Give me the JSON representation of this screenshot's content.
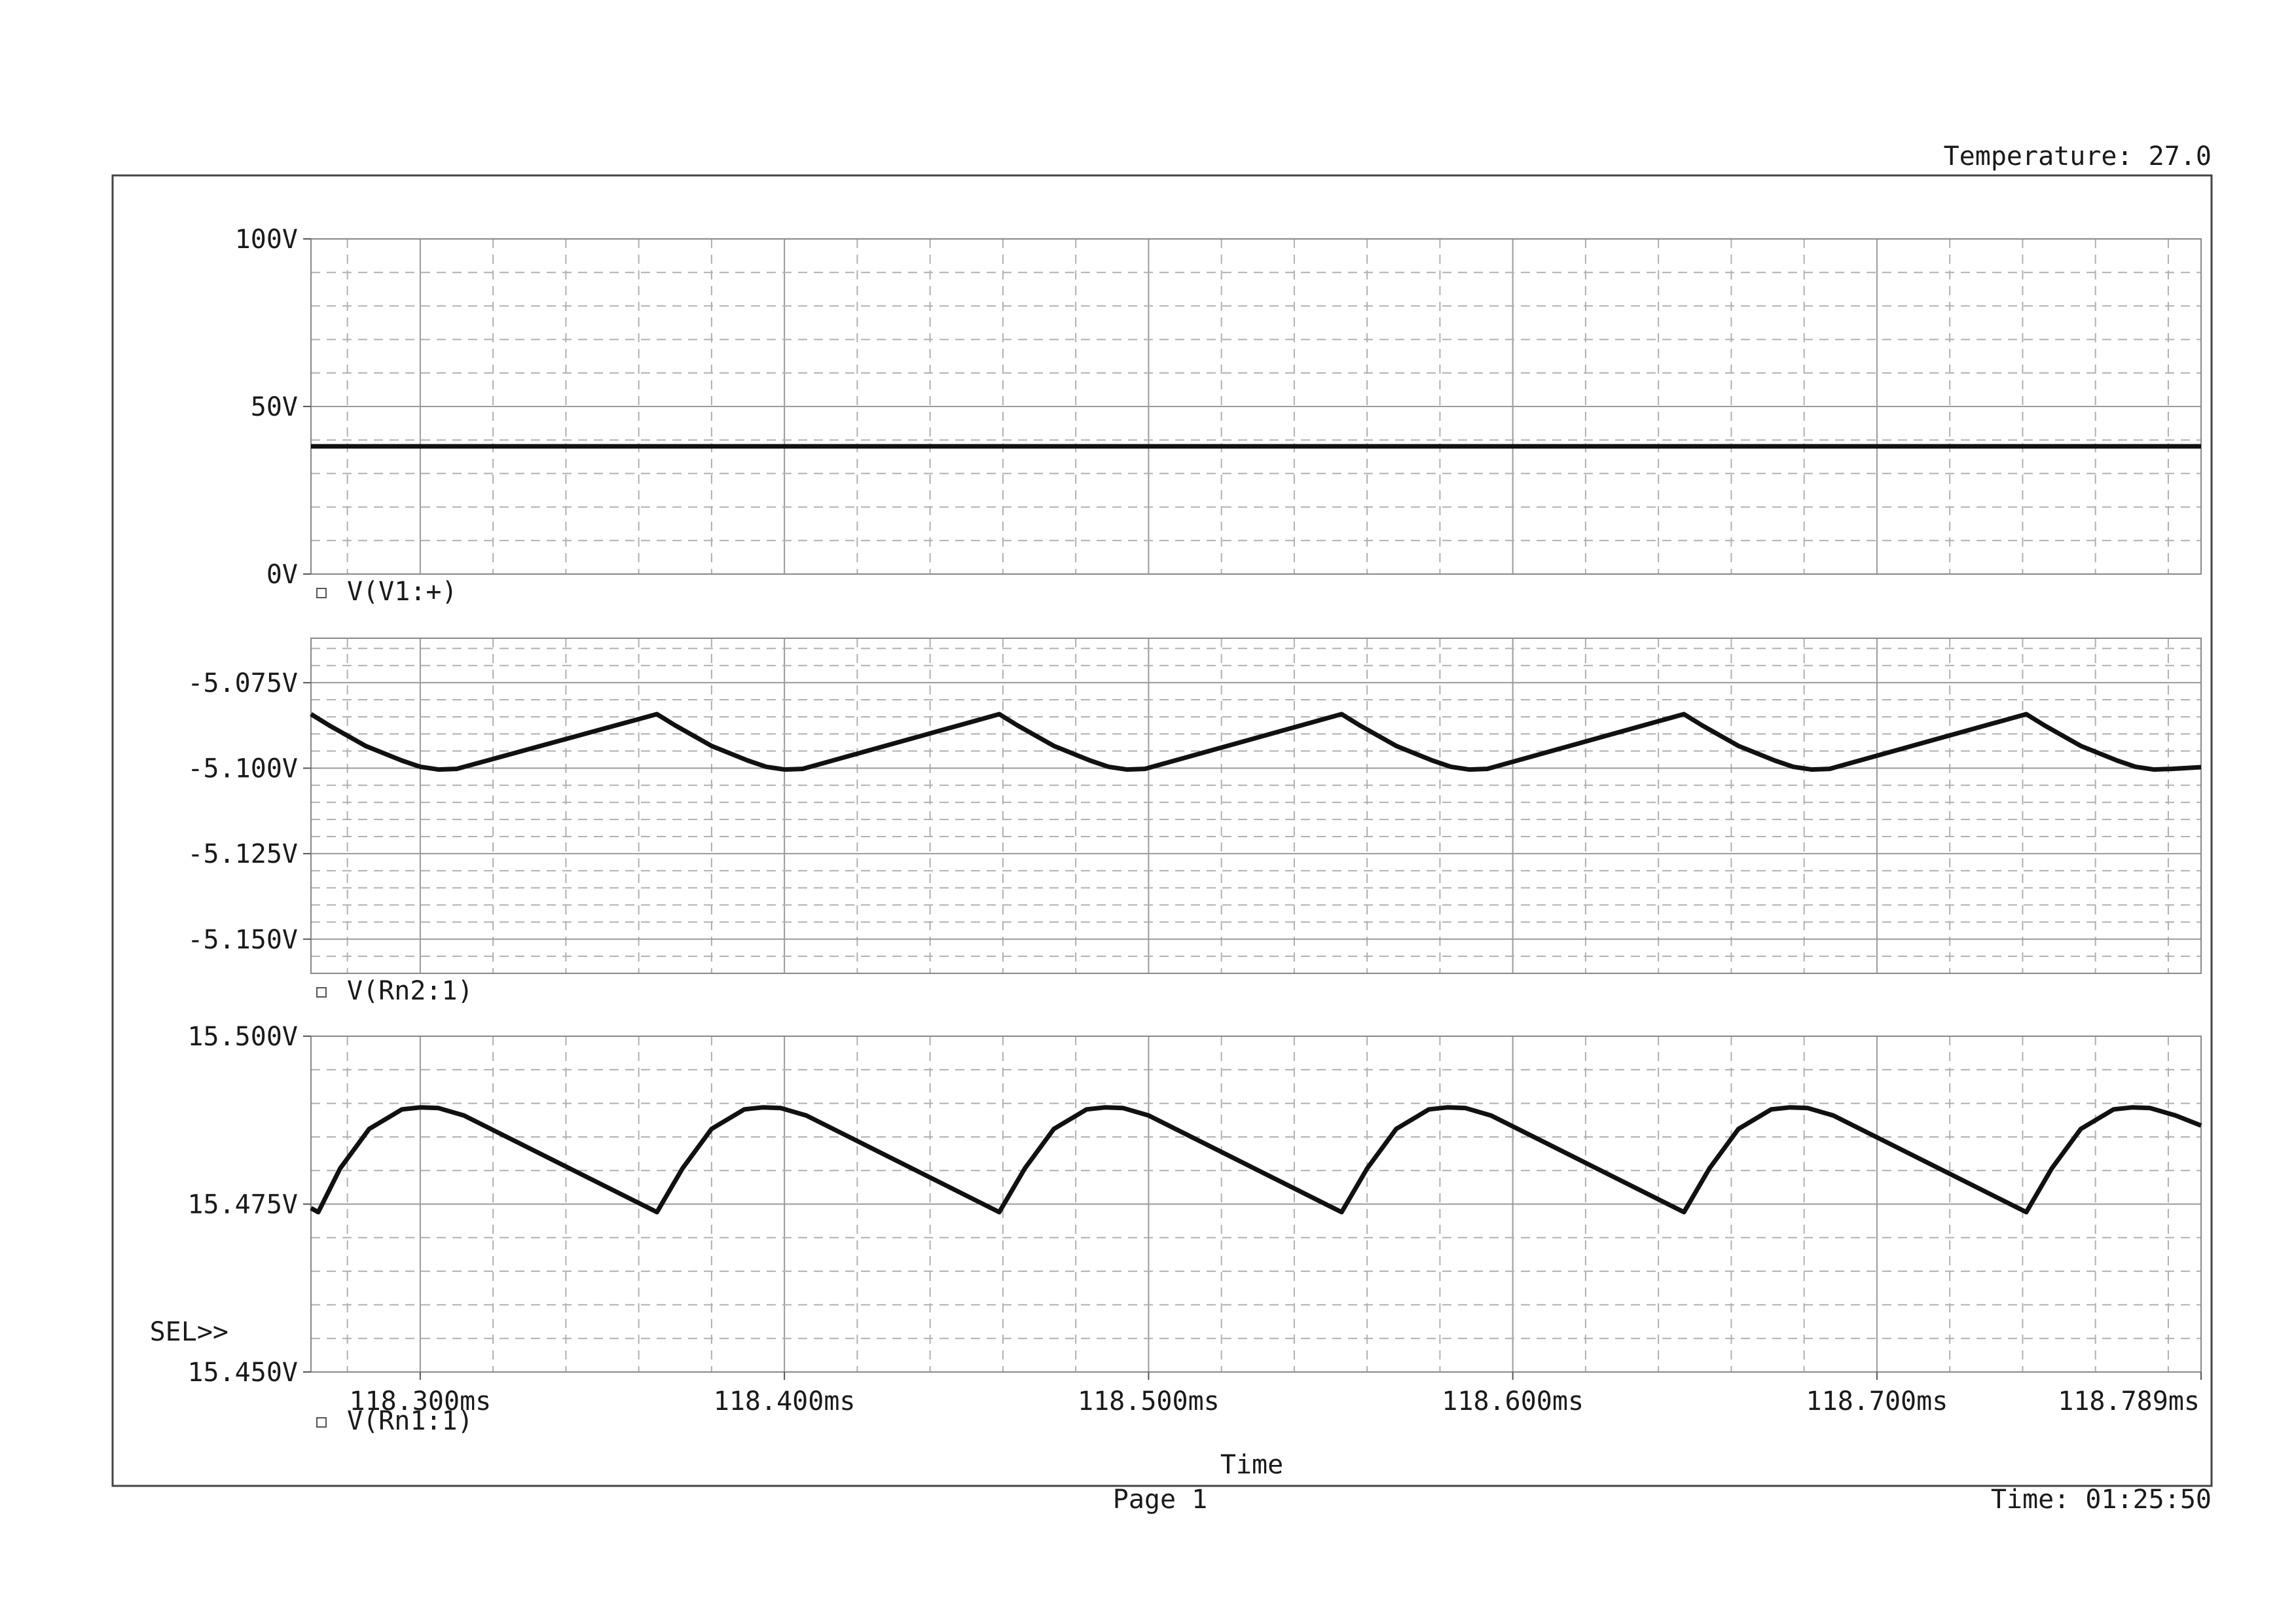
{
  "header": {
    "temperature": "Temperature: 27.0"
  },
  "footer": {
    "x_axis_title": "Time",
    "page": "Page 1",
    "time": "Time: 01:25:50"
  },
  "sel_marker": "SEL>>",
  "colors": {
    "trace": "#111111",
    "grid": "#9a9a9a",
    "frame": "#444444"
  },
  "chart_data": [
    {
      "type": "line",
      "series": [
        {
          "name": "V(V1:+)",
          "x": [
            118.27,
            118.789
          ],
          "y": [
            38.1,
            38.1
          ]
        }
      ],
      "ylim": [
        0,
        100
      ],
      "yticks": [
        0,
        50,
        100
      ],
      "ytick_labels": [
        "0V",
        "50V",
        "100V"
      ],
      "xlim": [
        118.27,
        118.789
      ],
      "grid": true
    },
    {
      "type": "line",
      "series": [
        {
          "name": "V(Rn2:1)",
          "x": [
            118.27,
            118.275,
            118.285,
            118.295,
            118.3,
            118.305,
            118.31,
            118.365,
            118.37,
            118.38,
            118.39,
            118.395,
            118.4,
            118.405,
            118.459,
            118.464,
            118.474,
            118.484,
            118.489,
            118.494,
            118.499,
            118.553,
            118.558,
            118.568,
            118.578,
            118.583,
            118.588,
            118.593,
            118.647,
            118.652,
            118.662,
            118.672,
            118.677,
            118.682,
            118.687,
            118.741,
            118.746,
            118.756,
            118.766,
            118.771,
            118.776,
            118.781,
            118.789
          ],
          "y": [
            -5.0842,
            -5.0875,
            -5.0935,
            -5.0978,
            -5.0996,
            -5.1004,
            -5.1002,
            -5.0842,
            -5.0875,
            -5.0935,
            -5.0978,
            -5.0996,
            -5.1004,
            -5.1002,
            -5.0842,
            -5.0875,
            -5.0935,
            -5.0978,
            -5.0996,
            -5.1004,
            -5.1002,
            -5.0842,
            -5.0875,
            -5.0935,
            -5.0978,
            -5.0996,
            -5.1004,
            -5.1002,
            -5.0842,
            -5.0875,
            -5.0935,
            -5.0978,
            -5.0996,
            -5.1004,
            -5.1002,
            -5.0842,
            -5.0875,
            -5.0935,
            -5.0978,
            -5.0996,
            -5.1004,
            -5.1002,
            -5.0997
          ]
        }
      ],
      "ylim": [
        -5.16,
        -5.062
      ],
      "yticks": [
        -5.15,
        -5.125,
        -5.1,
        -5.075
      ],
      "ytick_labels": [
        "-5.150V",
        "-5.125V",
        "-5.100V",
        "-5.075V"
      ],
      "xlim": [
        118.27,
        118.789
      ],
      "grid": true
    },
    {
      "type": "line",
      "series": [
        {
          "name": "V(Rn1:1)",
          "x": [
            118.27,
            118.272,
            118.278,
            118.286,
            118.295,
            118.3,
            118.305,
            118.312,
            118.365,
            118.372,
            118.38,
            118.389,
            118.394,
            118.399,
            118.406,
            118.459,
            118.466,
            118.474,
            118.483,
            118.488,
            118.493,
            118.5,
            118.553,
            118.56,
            118.568,
            118.577,
            118.582,
            118.587,
            118.594,
            118.647,
            118.654,
            118.662,
            118.671,
            118.676,
            118.681,
            118.688,
            118.741,
            118.748,
            118.756,
            118.765,
            118.77,
            118.775,
            118.782,
            118.789
          ],
          "y": [
            15.4744,
            15.4738,
            15.4803,
            15.4862,
            15.4891,
            15.4894,
            15.4893,
            15.4882,
            15.4738,
            15.4803,
            15.4862,
            15.4891,
            15.4894,
            15.4893,
            15.4882,
            15.4738,
            15.4803,
            15.4862,
            15.4891,
            15.4894,
            15.4893,
            15.4882,
            15.4738,
            15.4803,
            15.4862,
            15.4891,
            15.4894,
            15.4893,
            15.4882,
            15.4738,
            15.4803,
            15.4862,
            15.4891,
            15.4894,
            15.4893,
            15.4882,
            15.4738,
            15.4803,
            15.4862,
            15.4891,
            15.4894,
            15.4893,
            15.4882,
            15.4867
          ]
        }
      ],
      "ylim": [
        15.45,
        15.5
      ],
      "yticks": [
        15.45,
        15.475,
        15.5
      ],
      "ytick_labels": [
        "15.450V",
        "15.475V",
        "15.500V"
      ],
      "xlim": [
        118.27,
        118.789
      ],
      "xticks": [
        118.3,
        118.4,
        118.5,
        118.6,
        118.7,
        118.789
      ],
      "xtick_labels": [
        "118.300ms",
        "118.400ms",
        "118.500ms",
        "118.600ms",
        "118.700ms",
        "118.789ms"
      ],
      "grid": true
    }
  ]
}
